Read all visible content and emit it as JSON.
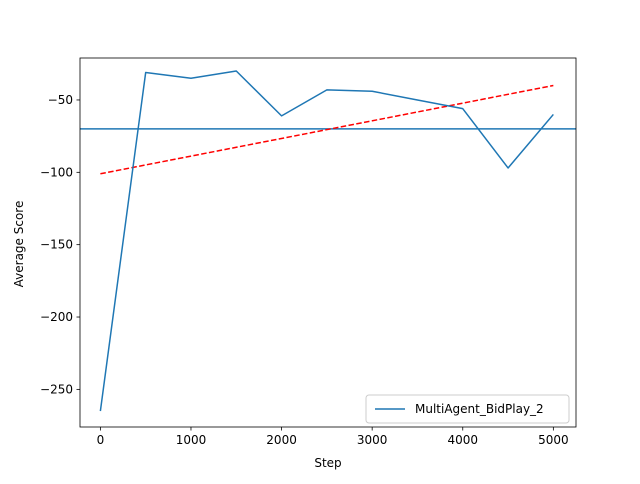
{
  "chart_data": {
    "type": "line",
    "title": "",
    "xlabel": "Step",
    "ylabel": "Average Score",
    "xlim": [
      -225,
      5250
    ],
    "ylim": [
      -276,
      -21
    ],
    "xticks": [
      0,
      1000,
      2000,
      3000,
      4000,
      5000
    ],
    "xtick_labels": [
      "0",
      "1000",
      "2000",
      "3000",
      "4000",
      "5000"
    ],
    "yticks": [
      -250,
      -200,
      -150,
      -100,
      -50
    ],
    "ytick_labels": [
      "−250",
      "−200",
      "−150",
      "−100",
      "−50"
    ],
    "grid": false,
    "legend_position": "lower-right",
    "series": [
      {
        "name": "MultiAgent_BidPlay_2",
        "color": "#1f77b4",
        "style": "solid",
        "x": [
          0,
          500,
          1000,
          1500,
          2000,
          2500,
          3000,
          3500,
          4000,
          4500,
          5000
        ],
        "y": [
          -265,
          -31,
          -35,
          -30,
          -61,
          -43,
          -44,
          -50,
          -56,
          -97,
          -60
        ]
      }
    ],
    "reference_lines": [
      {
        "kind": "horizontal",
        "y": -70,
        "color": "#1f77b4",
        "style": "solid"
      },
      {
        "kind": "trend",
        "x": [
          0,
          5000
        ],
        "y": [
          -101,
          -40
        ],
        "color": "#ff0000",
        "style": "dashed"
      }
    ]
  }
}
